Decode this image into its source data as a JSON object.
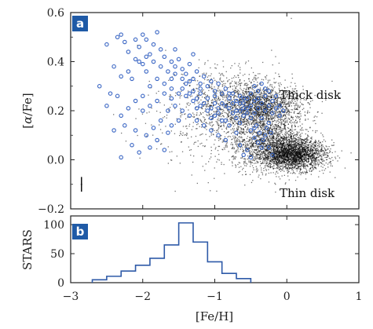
{
  "chart_data": [
    {
      "panel_label": "a",
      "type": "scatter",
      "xlabel": "",
      "ylabel": "[α/Fe]",
      "ylabel_parts": [
        "[",
        "α",
        "/Fe]"
      ],
      "xlim": [
        -3,
        1
      ],
      "ylim": [
        -0.2,
        0.6
      ],
      "yticks": [
        -0.2,
        0.0,
        0.2,
        0.4,
        0.6
      ],
      "ytick_labels": [
        "−0.2",
        "0.0",
        "0.2",
        "0.4",
        "0.6"
      ],
      "xticks": [
        -3,
        -2,
        -1,
        0,
        1
      ],
      "annotations": [
        {
          "text": "Thick disk",
          "x": 0.1,
          "y": 0.26
        },
        {
          "text": "Thin disk",
          "x": 0.1,
          "y": -0.14
        }
      ],
      "error_bar": {
        "x": -2.85,
        "y": -0.1,
        "yerr": 0.03,
        "xerr": 0.01
      },
      "series": [
        {
          "marker": "open-circle",
          "color": "#3a66c4",
          "points": [
            [
              -2.5,
              0.47
            ],
            [
              -2.35,
              0.5
            ],
            [
              -2.3,
              0.51
            ],
            [
              -2.25,
              0.48
            ],
            [
              -2.1,
              0.49
            ],
            [
              -2.05,
              0.46
            ],
            [
              -2.0,
              0.51
            ],
            [
              -1.95,
              0.49
            ],
            [
              -1.85,
              0.47
            ],
            [
              -1.8,
              0.52
            ],
            [
              -2.2,
              0.44
            ],
            [
              -2.1,
              0.41
            ],
            [
              -1.9,
              0.43
            ],
            [
              -1.75,
              0.45
            ],
            [
              -1.7,
              0.42
            ],
            [
              -2.0,
              0.39
            ],
            [
              -1.95,
              0.36
            ],
            [
              -2.4,
              0.38
            ],
            [
              -2.3,
              0.34
            ],
            [
              -2.15,
              0.33
            ],
            [
              -1.6,
              0.4
            ],
            [
              -1.55,
              0.38
            ],
            [
              -1.5,
              0.41
            ],
            [
              -1.45,
              0.37
            ],
            [
              -1.4,
              0.35
            ],
            [
              -1.35,
              0.39
            ],
            [
              -1.3,
              0.33
            ],
            [
              -1.25,
              0.36
            ],
            [
              -1.2,
              0.31
            ],
            [
              -1.15,
              0.34
            ],
            [
              -1.1,
              0.3
            ],
            [
              -1.05,
              0.32
            ],
            [
              -1.0,
              0.28
            ],
            [
              -0.95,
              0.31
            ],
            [
              -0.9,
              0.27
            ],
            [
              -0.85,
              0.29
            ],
            [
              -0.8,
              0.25
            ],
            [
              -0.75,
              0.27
            ],
            [
              -0.7,
              0.24
            ],
            [
              -0.65,
              0.26
            ],
            [
              -0.6,
              0.23
            ],
            [
              -0.55,
              0.25
            ],
            [
              -0.5,
              0.22
            ],
            [
              -0.45,
              0.24
            ],
            [
              -0.4,
              0.21
            ],
            [
              -0.35,
              0.23
            ],
            [
              -0.3,
              0.2
            ],
            [
              -0.25,
              0.22
            ],
            [
              -0.2,
              0.19
            ],
            [
              -0.15,
              0.21
            ],
            [
              -0.1,
              0.18
            ],
            [
              -0.4,
              0.28
            ],
            [
              -0.45,
              0.3
            ],
            [
              -0.5,
              0.27
            ],
            [
              -0.3,
              0.26
            ],
            [
              -0.25,
              0.28
            ],
            [
              -0.55,
              0.19
            ],
            [
              -0.6,
              0.18
            ],
            [
              -0.65,
              0.2
            ],
            [
              -0.7,
              0.17
            ],
            [
              -0.75,
              0.19
            ],
            [
              -0.5,
              0.12
            ],
            [
              -0.45,
              0.09
            ],
            [
              -0.4,
              0.07
            ],
            [
              -0.35,
              0.05
            ],
            [
              -0.3,
              0.1
            ],
            [
              -0.55,
              0.04
            ],
            [
              -0.6,
              0.02
            ],
            [
              -0.65,
              0.06
            ],
            [
              -0.5,
              0.01
            ],
            [
              -0.7,
              0.11
            ],
            [
              -0.8,
              0.14
            ],
            [
              -0.9,
              0.16
            ],
            [
              -1.0,
              0.18
            ],
            [
              -1.1,
              0.2
            ],
            [
              -1.2,
              0.22
            ],
            [
              -1.3,
              0.24
            ],
            [
              -1.4,
              0.26
            ],
            [
              -1.5,
              0.27
            ],
            [
              -1.6,
              0.29
            ],
            [
              -1.7,
              0.31
            ],
            [
              -1.8,
              0.33
            ],
            [
              -1.9,
              0.3
            ],
            [
              -2.0,
              0.26
            ],
            [
              -2.1,
              0.24
            ],
            [
              -2.2,
              0.21
            ],
            [
              -2.3,
              0.18
            ],
            [
              -2.25,
              0.14
            ],
            [
              -2.1,
              0.12
            ],
            [
              -1.95,
              0.1
            ],
            [
              -1.85,
              0.13
            ],
            [
              -1.75,
              0.16
            ],
            [
              -1.65,
              0.2
            ],
            [
              -1.55,
              0.22
            ],
            [
              -1.45,
              0.2
            ],
            [
              -1.35,
              0.18
            ],
            [
              -1.25,
              0.16
            ],
            [
              -1.15,
              0.14
            ],
            [
              -1.05,
              0.12
            ],
            [
              -0.95,
              0.1
            ],
            [
              -0.85,
              0.08
            ],
            [
              -2.45,
              0.27
            ],
            [
              -2.6,
              0.3
            ],
            [
              -2.5,
              0.22
            ],
            [
              -2.4,
              0.12
            ],
            [
              -2.3,
              0.01
            ],
            [
              -2.15,
              0.06
            ],
            [
              -2.05,
              0.03
            ],
            [
              -1.9,
              0.05
            ],
            [
              -1.8,
              0.08
            ],
            [
              -1.7,
              0.04
            ],
            [
              -1.65,
              0.11
            ],
            [
              -1.6,
              0.14
            ],
            [
              -1.5,
              0.16
            ],
            [
              -1.3,
              0.28
            ],
            [
              -1.2,
              0.27
            ],
            [
              -1.1,
              0.25
            ],
            [
              -1.0,
              0.23
            ],
            [
              -0.95,
              0.21
            ],
            [
              -0.85,
              0.22
            ],
            [
              -0.75,
              0.23
            ],
            [
              -0.65,
              0.23
            ],
            [
              -0.55,
              0.21
            ],
            [
              -0.45,
              0.19
            ],
            [
              -0.35,
              0.17
            ],
            [
              -0.25,
              0.15
            ],
            [
              -0.2,
              0.24
            ],
            [
              -0.15,
              0.26
            ],
            [
              -0.1,
              0.22
            ],
            [
              -0.05,
              0.2
            ],
            [
              -0.35,
              0.31
            ],
            [
              -0.3,
              0.29
            ],
            [
              -1.35,
              0.32
            ],
            [
              -1.45,
              0.33
            ],
            [
              -1.55,
              0.35
            ],
            [
              -1.65,
              0.36
            ],
            [
              -1.75,
              0.38
            ],
            [
              -1.85,
              0.4
            ],
            [
              -1.95,
              0.42
            ],
            [
              -2.05,
              0.4
            ],
            [
              -1.45,
              0.29
            ],
            [
              -1.35,
              0.27
            ],
            [
              -1.25,
              0.25
            ],
            [
              -1.15,
              0.23
            ],
            [
              -1.05,
              0.21
            ],
            [
              -0.95,
              0.19
            ],
            [
              -0.9,
              0.23
            ],
            [
              -0.8,
              0.21
            ],
            [
              -0.7,
              0.2
            ],
            [
              -0.6,
              0.21
            ],
            [
              -0.5,
              0.17
            ],
            [
              -0.42,
              0.14
            ],
            [
              -0.38,
              0.11
            ],
            [
              -0.33,
              0.08
            ],
            [
              -0.28,
              0.13
            ],
            [
              -0.22,
              0.11
            ],
            [
              -1.6,
              0.25
            ],
            [
              -1.7,
              0.27
            ],
            [
              -1.8,
              0.24
            ],
            [
              -1.9,
              0.22
            ],
            [
              -2.0,
              0.2
            ],
            [
              -1.4,
              0.31
            ],
            [
              -1.2,
              0.29
            ],
            [
              -1.0,
              0.26
            ],
            [
              -0.8,
              0.27
            ],
            [
              -0.6,
              0.25
            ],
            [
              -0.4,
              0.25
            ],
            [
              -1.25,
              0.21
            ],
            [
              -1.05,
              0.17
            ],
            [
              -0.85,
              0.16
            ],
            [
              -0.65,
              0.15
            ],
            [
              -0.45,
              0.13
            ],
            [
              -0.25,
              0.05
            ],
            [
              -0.2,
              0.02
            ],
            [
              -1.3,
              0.43
            ],
            [
              -1.6,
              0.33
            ],
            [
              -2.35,
              0.26
            ],
            [
              -2.2,
              0.36
            ],
            [
              -1.55,
              0.45
            ]
          ]
        },
        {
          "marker": "dot",
          "color": "#000000",
          "description_clusters": [
            {
              "cx": -0.35,
              "cy": 0.21,
              "sx": 0.28,
              "sy": 0.045,
              "n": 1400
            },
            {
              "cx": -0.2,
              "cy": 0.06,
              "sx": 0.28,
              "sy": 0.05,
              "n": 1600
            },
            {
              "cx": 0.1,
              "cy": 0.02,
              "sx": 0.22,
              "sy": 0.03,
              "n": 1800
            },
            {
              "cx": -0.7,
              "cy": 0.25,
              "sx": 0.4,
              "sy": 0.06,
              "n": 700
            },
            {
              "cx": -0.9,
              "cy": 0.15,
              "sx": 0.5,
              "sy": 0.1,
              "n": 500
            }
          ]
        }
      ]
    },
    {
      "panel_label": "b",
      "type": "bar",
      "style": "step-histogram",
      "xlabel": "[Fe/H]",
      "ylabel": "STARS",
      "xlim": [
        -3,
        1
      ],
      "ylim": [
        0,
        115
      ],
      "yticks": [
        0,
        50,
        100
      ],
      "ytick_labels": [
        "0",
        "50",
        "100"
      ],
      "xticks": [
        -3,
        -2,
        -1,
        0,
        1
      ],
      "xtick_labels": [
        "−3",
        "−2",
        "−1",
        "0",
        "1"
      ],
      "bin_edges": [
        -2.7,
        -2.5,
        -2.3,
        -2.1,
        -1.9,
        -1.7,
        -1.5,
        -1.3,
        -1.1,
        -0.9,
        -0.7,
        -0.5
      ],
      "values": [
        5,
        11,
        20,
        30,
        42,
        65,
        103,
        70,
        36,
        16,
        7
      ],
      "color": "#2e5aa8"
    }
  ]
}
